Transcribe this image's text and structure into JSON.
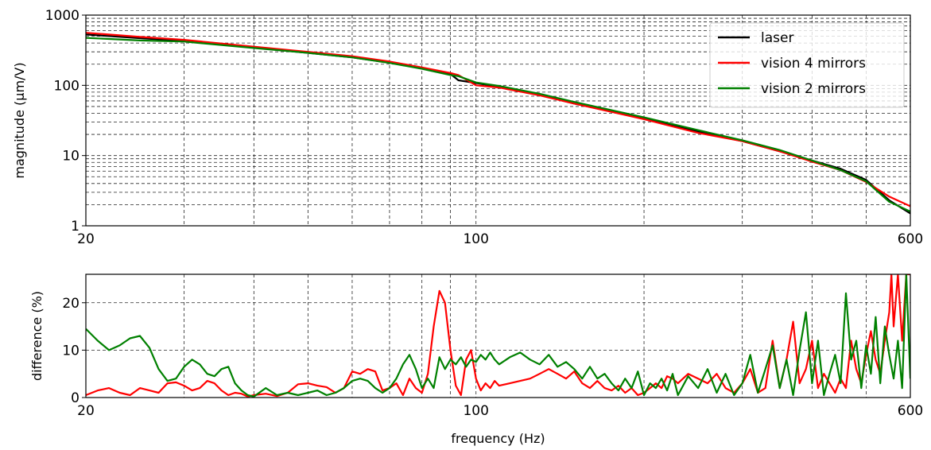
{
  "colors": {
    "laser": "#000000",
    "vision4": "#ff0000",
    "vision2": "#008000"
  },
  "chart_data": [
    {
      "type": "line",
      "xscale": "log",
      "yscale": "log",
      "xlim": [
        20,
        600
      ],
      "ylim": [
        1,
        1000
      ],
      "grid": true,
      "legend_position": "top-right",
      "xlabel": "",
      "ylabel": "magnitude (µm/V)",
      "x_tick_labels": [
        "20",
        "100",
        "600"
      ],
      "y_tick_labels": [
        "1",
        "10",
        "100",
        "1000"
      ],
      "series": [
        {
          "name": "laser",
          "color": "#000000",
          "x": [
            20,
            25,
            30,
            40,
            50,
            60,
            70,
            80,
            90,
            93,
            100,
            110,
            130,
            150,
            200,
            250,
            300,
            350,
            400,
            450,
            500,
            550,
            600
          ],
          "y": [
            530,
            470,
            430,
            345,
            290,
            250,
            210,
            175,
            145,
            118,
            108,
            95,
            73,
            55,
            34,
            22,
            16,
            11.5,
            8.5,
            6.5,
            4.5,
            2.3,
            1.5
          ]
        },
        {
          "name": "vision 4 mirrors",
          "color": "#ff0000",
          "x": [
            20,
            25,
            30,
            40,
            50,
            60,
            70,
            80,
            90,
            93,
            100,
            110,
            130,
            150,
            200,
            250,
            300,
            350,
            400,
            450,
            500,
            550,
            600
          ],
          "y": [
            560,
            490,
            445,
            355,
            300,
            260,
            218,
            180,
            150,
            140,
            100,
            93,
            72,
            55,
            33,
            21,
            16,
            11.5,
            8.2,
            6.2,
            4.2,
            2.6,
            1.9
          ]
        },
        {
          "name": "vision 2 mirrors",
          "color": "#008000",
          "x": [
            20,
            25,
            30,
            40,
            50,
            60,
            70,
            80,
            90,
            93,
            100,
            110,
            130,
            150,
            200,
            250,
            300,
            350,
            400,
            450,
            500,
            550,
            600
          ],
          "y": [
            475,
            435,
            420,
            340,
            290,
            250,
            208,
            172,
            140,
            135,
            110,
            98,
            76,
            58,
            35,
            23,
            16.5,
            12,
            8.5,
            6.2,
            4.3,
            2.2,
            1.6
          ]
        }
      ]
    },
    {
      "type": "line",
      "xscale": "log",
      "xlim": [
        20,
        600
      ],
      "ylim": [
        0,
        26
      ],
      "grid": true,
      "xlabel": "frequency (Hz)",
      "ylabel": "difference (%)",
      "x_tick_labels": [
        "20",
        "100",
        "600"
      ],
      "y_tick_labels": [
        "0",
        "10",
        "20"
      ],
      "series": [
        {
          "name": "vision 4 mirrors",
          "color": "#ff0000",
          "x": [
            20,
            21,
            22,
            23,
            24,
            25,
            26,
            27,
            28,
            29,
            30,
            31,
            32,
            33,
            34,
            35,
            36,
            37,
            38,
            39,
            40,
            42,
            44,
            46,
            48,
            50,
            52,
            54,
            56,
            58,
            60,
            62,
            64,
            66,
            68,
            70,
            72,
            74,
            76,
            78,
            80,
            82,
            84,
            86,
            88,
            90,
            92,
            93,
            94,
            96,
            98,
            100,
            102,
            104,
            106,
            108,
            110,
            115,
            120,
            125,
            130,
            135,
            140,
            145,
            150,
            155,
            160,
            165,
            170,
            175,
            180,
            185,
            190,
            195,
            200,
            205,
            210,
            215,
            220,
            225,
            230,
            240,
            250,
            260,
            270,
            280,
            290,
            300,
            310,
            320,
            330,
            340,
            350,
            360,
            370,
            380,
            390,
            400,
            410,
            420,
            430,
            440,
            450,
            460,
            470,
            480,
            490,
            500,
            510,
            520,
            530,
            540,
            550,
            555,
            560,
            570,
            580,
            590,
            600
          ],
          "y": [
            0.5,
            1.5,
            2.0,
            1.0,
            0.5,
            2.0,
            1.5,
            1.0,
            3.0,
            3.2,
            2.5,
            1.5,
            2.0,
            3.5,
            3.0,
            1.5,
            0.5,
            1.0,
            0.8,
            0.2,
            0.5,
            0.8,
            0.3,
            1.0,
            2.8,
            3.0,
            2.5,
            2.2,
            1.0,
            2.0,
            5.5,
            5.0,
            6.0,
            5.5,
            1.5,
            2.0,
            3.0,
            0.5,
            4.0,
            2.0,
            1.0,
            5.0,
            15.0,
            22.5,
            20.0,
            10.0,
            2.5,
            1.5,
            0.5,
            8.0,
            10.0,
            4.0,
            1.5,
            3.0,
            2.0,
            3.5,
            2.5,
            3.0,
            3.5,
            4.0,
            5.0,
            6.0,
            5.0,
            4.0,
            5.5,
            3.0,
            2.0,
            3.5,
            2.0,
            1.5,
            2.5,
            1.0,
            2.0,
            0.5,
            1.0,
            2.0,
            3.0,
            2.0,
            4.5,
            4.0,
            3.0,
            5.0,
            4.0,
            3.0,
            5.0,
            2.0,
            1.0,
            3.0,
            6.0,
            1.0,
            2.0,
            12.0,
            2.0,
            8.0,
            16.0,
            3.0,
            6.0,
            12.0,
            2.0,
            5.0,
            3.0,
            1.0,
            4.0,
            2.0,
            12.0,
            6.0,
            3.0,
            9.0,
            14.0,
            8.0,
            5.0,
            12.0,
            18.0,
            26.0,
            15.0,
            26.0,
            12.0,
            26.0,
            26.0
          ],
          "style": "line"
        },
        {
          "name": "vision 2 mirrors",
          "color": "#008000",
          "x": [
            20,
            21,
            22,
            23,
            24,
            25,
            26,
            27,
            28,
            29,
            30,
            31,
            32,
            33,
            34,
            35,
            36,
            37,
            38,
            39,
            40,
            42,
            44,
            46,
            48,
            50,
            52,
            54,
            56,
            58,
            60,
            62,
            64,
            66,
            68,
            70,
            72,
            74,
            76,
            78,
            80,
            82,
            84,
            86,
            88,
            90,
            92,
            94,
            96,
            98,
            100,
            102,
            104,
            106,
            108,
            110,
            115,
            120,
            125,
            130,
            135,
            140,
            145,
            150,
            155,
            160,
            165,
            170,
            175,
            180,
            185,
            190,
            195,
            200,
            205,
            210,
            215,
            220,
            225,
            230,
            240,
            250,
            260,
            270,
            280,
            290,
            300,
            310,
            320,
            330,
            340,
            350,
            360,
            370,
            380,
            390,
            400,
            410,
            420,
            430,
            440,
            450,
            460,
            470,
            480,
            490,
            500,
            510,
            520,
            530,
            540,
            550,
            560,
            570,
            580,
            590,
            600
          ],
          "y": [
            14.5,
            12.0,
            10.0,
            11.0,
            12.5,
            13.0,
            10.5,
            6.0,
            3.5,
            4.0,
            6.5,
            8.0,
            7.0,
            5.0,
            4.5,
            6.0,
            6.5,
            3.0,
            1.5,
            0.5,
            0.2,
            2.0,
            0.5,
            1.0,
            0.5,
            1.0,
            1.5,
            0.5,
            1.0,
            2.0,
            3.5,
            4.0,
            3.5,
            2.0,
            1.0,
            2.0,
            4.0,
            7.0,
            9.0,
            6.0,
            2.0,
            4.0,
            2.0,
            8.5,
            6.0,
            8.0,
            7.0,
            8.5,
            6.5,
            8.0,
            7.5,
            9.0,
            8.0,
            9.5,
            8.0,
            7.0,
            8.5,
            9.5,
            8.0,
            7.0,
            9.0,
            6.5,
            7.5,
            6.0,
            4.0,
            6.5,
            4.0,
            5.0,
            3.0,
            1.5,
            4.0,
            2.0,
            5.5,
            0.5,
            3.0,
            2.0,
            4.0,
            1.5,
            5.0,
            0.5,
            4.5,
            2.0,
            6.0,
            1.0,
            5.0,
            0.5,
            3.0,
            9.0,
            1.0,
            6.0,
            11.0,
            2.0,
            8.0,
            0.5,
            10.0,
            18.0,
            3.0,
            12.0,
            0.5,
            5.0,
            9.0,
            3.0,
            22.0,
            8.0,
            12.0,
            2.0,
            11.0,
            5.0,
            17.0,
            3.0,
            15.0,
            9.0,
            4.0,
            12.0,
            2.0,
            26.0,
            4.0
          ]
        }
      ]
    }
  ]
}
